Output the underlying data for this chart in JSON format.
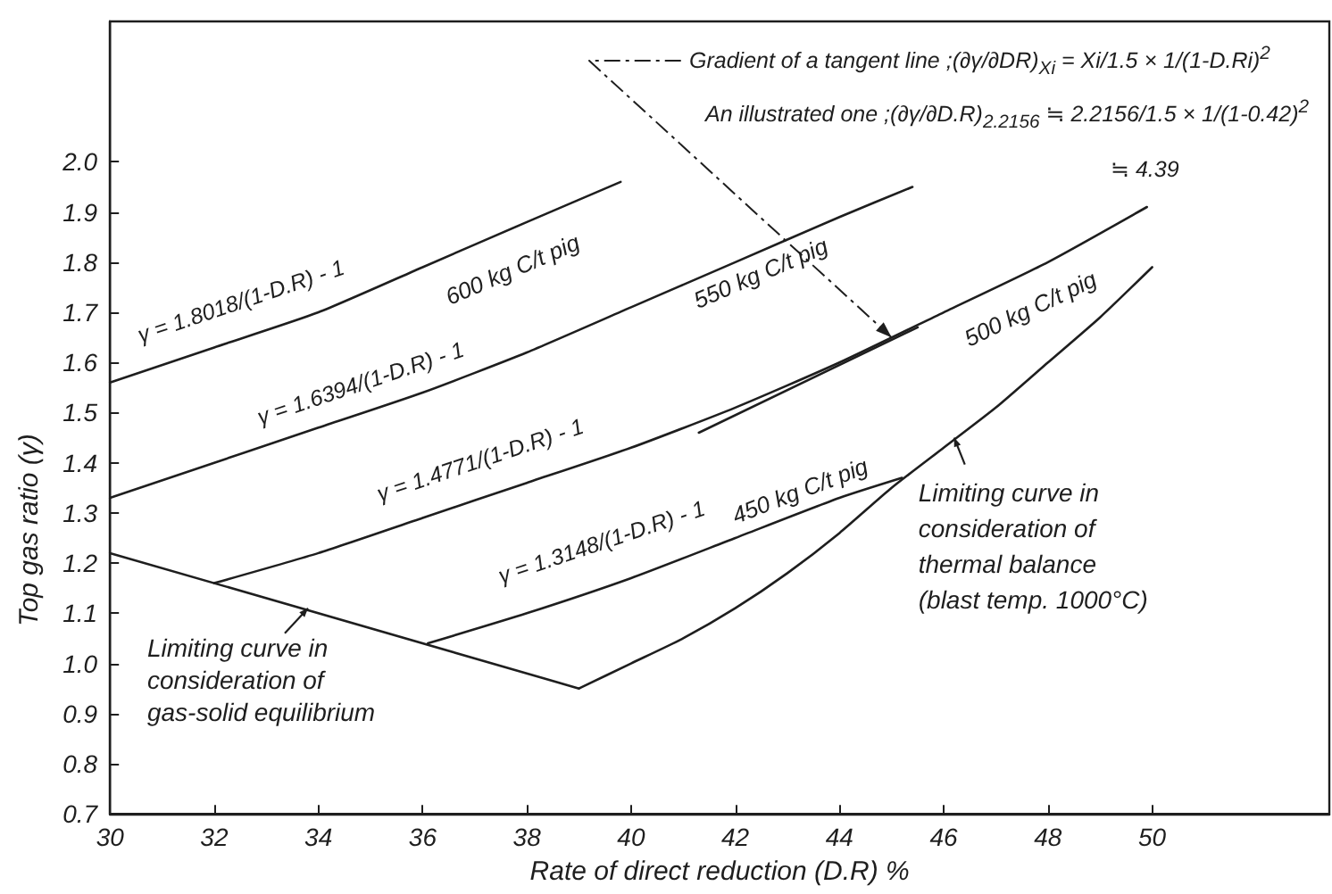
{
  "chart_data": {
    "type": "line",
    "xlabel": "Rate of direct reduction (D.R) %",
    "ylabel": "Top gas ratio (γ)",
    "xlim": [
      30,
      53.4
    ],
    "xticks": [
      30,
      32,
      34,
      36,
      38,
      40,
      42,
      44,
      46,
      48,
      50
    ],
    "ylim": [
      0.7,
      2.28
    ],
    "yticks": [
      0.7,
      0.8,
      0.9,
      {
        "value": 1,
        "label": "1.0"
      },
      1.1,
      1.2,
      1.3,
      1.4,
      1.5,
      1.6,
      1.7,
      1.8,
      1.9,
      {
        "value": 2,
        "label": "2.0"
      }
    ],
    "marker": "none",
    "line_style": "solid",
    "series": [
      {
        "name": "600 kg C/t pig",
        "color": "#1e1e1e",
        "x": [
          30,
          32,
          34,
          36,
          38,
          39.8
        ],
        "values": [
          1.56,
          1.63,
          1.7,
          1.79,
          1.88,
          1.96
        ]
      },
      {
        "name": "550 kg C/t pig",
        "color": "#1e1e1e",
        "x": [
          30,
          32,
          34,
          36,
          38,
          40,
          42,
          44,
          45.4
        ],
        "values": [
          1.33,
          1.4,
          1.47,
          1.54,
          1.62,
          1.71,
          1.8,
          1.89,
          1.95
        ]
      },
      {
        "name": "500 kg C/t pig",
        "color": "#1e1e1e",
        "x": [
          32,
          34,
          36,
          38,
          40,
          42,
          44,
          46,
          48,
          49.9
        ],
        "values": [
          1.16,
          1.22,
          1.29,
          1.36,
          1.43,
          1.51,
          1.6,
          1.7,
          1.8,
          1.91
        ]
      },
      {
        "name": "450 kg C/t pig",
        "color": "#1e1e1e",
        "x": [
          36.1,
          38,
          40,
          42,
          44,
          45.2
        ],
        "values": [
          1.04,
          1.1,
          1.17,
          1.25,
          1.33,
          1.37
        ]
      },
      {
        "color": "#1e1e1e",
        "x": [
          30,
          39
        ],
        "values": [
          1.22,
          0.95
        ]
      },
      {
        "color": "#1e1e1e",
        "x": [
          39,
          40,
          41,
          42,
          43,
          44,
          45,
          46,
          47,
          48,
          49,
          50
        ],
        "values": [
          0.95,
          1.0,
          1.05,
          1.11,
          1.18,
          1.26,
          1.35,
          1.43,
          1.51,
          1.6,
          1.69,
          1.79
        ]
      },
      {
        "color": "#1e1e1e",
        "x": [
          41.3,
          45.5
        ],
        "values": [
          1.46,
          1.67
        ]
      }
    ],
    "annotations": [
      {
        "text": "γ = 1.8018/(1-D.R) - 1",
        "x": 32.7,
        "y": 1.66
      },
      {
        "text": "γ = 1.6394/(1-D.R) - 1",
        "x": 35,
        "y": 1.5
      },
      {
        "text": "γ = 1.4771/(1-D.R) - 1",
        "x": 37.3,
        "y": 1.34
      },
      {
        "text": "γ = 1.3148/(1-D.R) - 1",
        "x": 39.7,
        "y": 1.16
      },
      {
        "text": "Gradient of a tangent line ;(∂γ/∂DR)$_{Xi}$ = Xi/1.5 × 1/(1-D.Ri)$^{2}$",
        "x": 45,
        "y": 1.65
      },
      "An illustrated one ;(∂γ/∂D.R)$_{2.2156}$ ≒ 2.2156/1.5 × 1/(1-0.42)$^{2}$",
      "≒ 4.39",
      {
        "text": "Limiting curve in consideration of gas-solid equilibrium",
        "x": 33.8,
        "y": 1.11
      },
      {
        "text": "Limiting curve in consideration of thermal balance (blast temp. 1000°C)",
        "x": 46.2,
        "y": 1.45
      }
    ]
  }
}
